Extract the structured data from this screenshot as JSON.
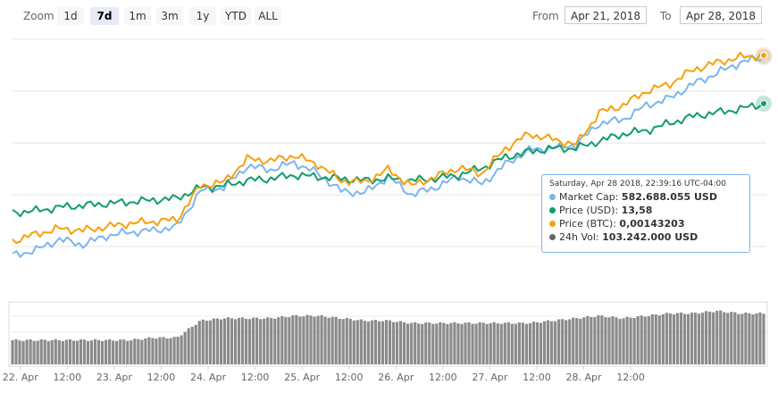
{
  "toolbar": {
    "zoom_label": "Zoom",
    "zoom_buttons": [
      "1d",
      "7d",
      "1m",
      "3m",
      "1y",
      "YTD",
      "ALL"
    ],
    "active_zoom": "7d",
    "from_label": "From",
    "from_value": "Apr 21, 2018",
    "to_label": "To",
    "to_value": "Apr 28, 2018"
  },
  "tooltip": {
    "date": "Saturday, Apr 28 2018, 22:39:16 UTC-04:00",
    "rows": [
      {
        "label": "Market Cap:",
        "value": "582.688.055 USD",
        "color": "#7cb5ec"
      },
      {
        "label": "Price (USD):",
        "value": "13,58",
        "color": "#0e9c6e"
      },
      {
        "label": "Price (BTC):",
        "value": "0,00143203",
        "color": "#f7a00e"
      },
      {
        "label": "24h Vol:",
        "value": "103.242.000 USD",
        "color": "#666666"
      }
    ]
  },
  "chart_data": {
    "type": "line",
    "x_tick_labels": [
      "22. Apr",
      "12:00",
      "23. Apr",
      "12:00",
      "24. Apr",
      "12:00",
      "25. Apr",
      "12:00",
      "26. Apr",
      "12:00",
      "27. Apr",
      "12:00",
      "28. Apr",
      "12:00"
    ],
    "x": [
      0,
      6,
      12,
      18,
      24,
      30,
      36,
      42,
      48,
      54,
      60,
      66,
      72,
      78,
      84,
      90,
      96,
      102,
      108,
      114,
      120,
      126,
      132,
      138,
      144,
      150,
      156,
      162,
      168,
      174,
      180,
      186,
      192
    ],
    "x_unit": "hours since Apr 22 00:00",
    "series": [
      {
        "name": "Market Cap",
        "color": "#7cb5ec",
        "values": [
          24,
          27,
          33,
          30,
          35,
          37,
          38,
          40,
          60,
          62,
          74,
          72,
          76,
          70,
          60,
          59,
          68,
          58,
          62,
          68,
          64,
          75,
          83,
          84,
          86,
          98,
          100,
          108,
          112,
          120,
          126,
          132,
          135
        ]
      },
      {
        "name": "Price (USD)",
        "color": "#0e9c6e",
        "values": [
          48,
          49,
          51,
          52,
          53,
          54,
          55,
          56,
          62,
          63,
          66,
          67,
          69,
          68,
          67,
          66,
          67,
          66,
          67,
          69,
          73,
          79,
          82,
          84,
          84,
          88,
          92,
          94,
          98,
          102,
          104,
          106,
          109
        ]
      },
      {
        "name": "Price (BTC)",
        "color": "#f7a00e",
        "values": [
          32,
          36,
          39,
          38,
          40,
          42,
          43,
          44,
          63,
          65,
          78,
          77,
          80,
          75,
          66,
          65,
          72,
          63,
          68,
          73,
          70,
          84,
          92,
          89,
          86,
          104,
          108,
          116,
          120,
          128,
          132,
          135,
          136
        ]
      }
    ],
    "volume": {
      "name": "24h Vol",
      "values": [
        10,
        10,
        10,
        10,
        10,
        10,
        11,
        11,
        18,
        19,
        19,
        19,
        20,
        20,
        19,
        18,
        18,
        17,
        17,
        17,
        17,
        17,
        17,
        18,
        19,
        20,
        19,
        20,
        21,
        21,
        22,
        21,
        21
      ]
    },
    "ylim": [
      0,
      145
    ],
    "vol_ylim": [
      0,
      25
    ],
    "grid": true,
    "legend": "tooltip"
  }
}
